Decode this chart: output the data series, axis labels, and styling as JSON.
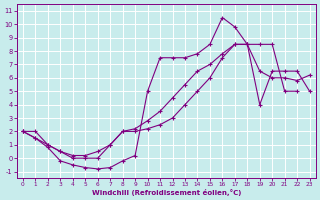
{
  "background_color": "#c8ecec",
  "grid_color": "#ffffff",
  "line_color": "#800080",
  "xlabel": "Windchill (Refroidissement éolien,°C)",
  "xlim": [
    -0.5,
    23.5
  ],
  "ylim": [
    -1.5,
    11.5
  ],
  "xticks": [
    0,
    1,
    2,
    3,
    4,
    5,
    6,
    7,
    8,
    9,
    10,
    11,
    12,
    13,
    14,
    15,
    16,
    17,
    18,
    19,
    20,
    21,
    22,
    23
  ],
  "yticks": [
    -1,
    0,
    1,
    2,
    3,
    4,
    5,
    6,
    7,
    8,
    9,
    10,
    11
  ],
  "line1_x": [
    0,
    1,
    2,
    3,
    4,
    5,
    6,
    7,
    8,
    9,
    10,
    11,
    12,
    13,
    14,
    15,
    16,
    17,
    18,
    19,
    20,
    21,
    22
  ],
  "line1_y": [
    2,
    2,
    1,
    0.5,
    0,
    0,
    0,
    1,
    2,
    2,
    2.2,
    2.5,
    3,
    4,
    5,
    6,
    7.5,
    8.5,
    8.5,
    8.5,
    8.5,
    5,
    5
  ],
  "line2_x": [
    0,
    1,
    2,
    3,
    4,
    5,
    6,
    7,
    8,
    9,
    10,
    11,
    12,
    13,
    14,
    15,
    16,
    17,
    18,
    19,
    20,
    21,
    22,
    23
  ],
  "line2_y": [
    2,
    1.5,
    0.8,
    -0.2,
    -0.5,
    -0.7,
    -0.8,
    -0.7,
    -0.2,
    0.2,
    5.0,
    7.5,
    7.5,
    7.5,
    7.8,
    8.5,
    10.5,
    9.8,
    8.5,
    6.5,
    6.0,
    6.0,
    5.8,
    6.2
  ],
  "line3_x": [
    0,
    1,
    2,
    3,
    4,
    5,
    6,
    7,
    8,
    9,
    10,
    11,
    12,
    13,
    14,
    15,
    16,
    17,
    18,
    19,
    20,
    21,
    22,
    23
  ],
  "line3_y": [
    2,
    1.5,
    1.0,
    0.5,
    0.2,
    0.2,
    0.5,
    1.0,
    2.0,
    2.2,
    2.8,
    3.5,
    4.5,
    5.5,
    6.5,
    7.0,
    7.8,
    8.5,
    8.5,
    4.0,
    6.5,
    6.5,
    6.5,
    5.0
  ]
}
